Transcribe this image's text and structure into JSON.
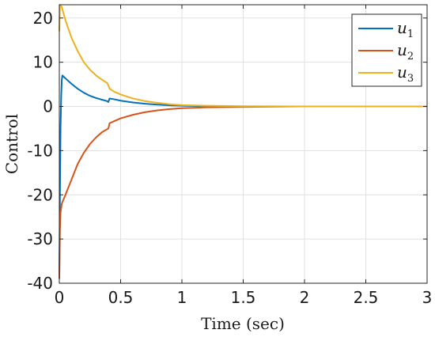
{
  "chart_data": {
    "type": "line",
    "title": "",
    "xlabel": "Time (sec)",
    "ylabel": "Control",
    "xlim": [
      0,
      3
    ],
    "ylim": [
      -40,
      23
    ],
    "xticks": [
      0,
      0.5,
      1,
      1.5,
      2,
      2.5,
      3
    ],
    "xtick_labels": [
      "0",
      "0.5",
      "1",
      "1.5",
      "2",
      "2.5",
      "3"
    ],
    "yticks": [
      -40,
      -30,
      -20,
      -10,
      0,
      10,
      20
    ],
    "ytick_labels": [
      "-40",
      "-30",
      "-20",
      "-10",
      "0",
      "10",
      "20"
    ],
    "grid": true,
    "legend_position": "top-right",
    "series": [
      {
        "name": "u",
        "subscript": "1",
        "color": "#0072BD",
        "points": [
          [
            0,
            -38
          ],
          [
            0.005,
            -20
          ],
          [
            0.01,
            -5
          ],
          [
            0.015,
            2
          ],
          [
            0.02,
            6
          ],
          [
            0.025,
            7
          ],
          [
            0.04,
            6.6
          ],
          [
            0.06,
            6.1
          ],
          [
            0.08,
            5.6
          ],
          [
            0.1,
            5.1
          ],
          [
            0.15,
            4.0
          ],
          [
            0.2,
            3.1
          ],
          [
            0.25,
            2.4
          ],
          [
            0.3,
            1.9
          ],
          [
            0.35,
            1.5
          ],
          [
            0.39,
            1.2
          ],
          [
            0.4,
            1.0
          ],
          [
            0.41,
            1.8
          ],
          [
            0.45,
            1.6
          ],
          [
            0.5,
            1.3
          ],
          [
            0.6,
            0.9
          ],
          [
            0.7,
            0.6
          ],
          [
            0.8,
            0.4
          ],
          [
            0.9,
            0.25
          ],
          [
            1.0,
            0.15
          ],
          [
            1.2,
            0.05
          ],
          [
            1.5,
            0.0
          ],
          [
            2,
            0
          ],
          [
            2.5,
            0
          ],
          [
            3,
            0
          ]
        ]
      },
      {
        "name": "u",
        "subscript": "2",
        "color": "#D95319",
        "points": [
          [
            0,
            -39
          ],
          [
            0.005,
            -28
          ],
          [
            0.01,
            -24
          ],
          [
            0.02,
            -22
          ],
          [
            0.05,
            -20
          ],
          [
            0.1,
            -16.5
          ],
          [
            0.15,
            -13
          ],
          [
            0.2,
            -10.5
          ],
          [
            0.25,
            -8.5
          ],
          [
            0.3,
            -7
          ],
          [
            0.35,
            -5.8
          ],
          [
            0.4,
            -5
          ],
          [
            0.41,
            -3.8
          ],
          [
            0.45,
            -3.3
          ],
          [
            0.5,
            -2.7
          ],
          [
            0.6,
            -1.9
          ],
          [
            0.7,
            -1.3
          ],
          [
            0.8,
            -0.9
          ],
          [
            0.9,
            -0.6
          ],
          [
            1.0,
            -0.4
          ],
          [
            1.2,
            -0.2
          ],
          [
            1.5,
            -0.1
          ],
          [
            2,
            0
          ],
          [
            2.5,
            0
          ],
          [
            3,
            0
          ]
        ]
      },
      {
        "name": "u",
        "subscript": "3",
        "color": "#EDB120",
        "points": [
          [
            0,
            17
          ],
          [
            0.005,
            23
          ],
          [
            0.02,
            22.5
          ],
          [
            0.05,
            19.5
          ],
          [
            0.1,
            15.5
          ],
          [
            0.15,
            12.5
          ],
          [
            0.2,
            10
          ],
          [
            0.25,
            8.3
          ],
          [
            0.3,
            7
          ],
          [
            0.35,
            6
          ],
          [
            0.39,
            5.3
          ],
          [
            0.4,
            4.8
          ],
          [
            0.41,
            4.0
          ],
          [
            0.45,
            3.3
          ],
          [
            0.5,
            2.7
          ],
          [
            0.6,
            1.8
          ],
          [
            0.7,
            1.2
          ],
          [
            0.8,
            0.8
          ],
          [
            0.9,
            0.5
          ],
          [
            1.0,
            0.3
          ],
          [
            1.2,
            0.15
          ],
          [
            1.5,
            0.05
          ],
          [
            2,
            0
          ],
          [
            2.5,
            0
          ],
          [
            3,
            0
          ]
        ]
      }
    ]
  }
}
